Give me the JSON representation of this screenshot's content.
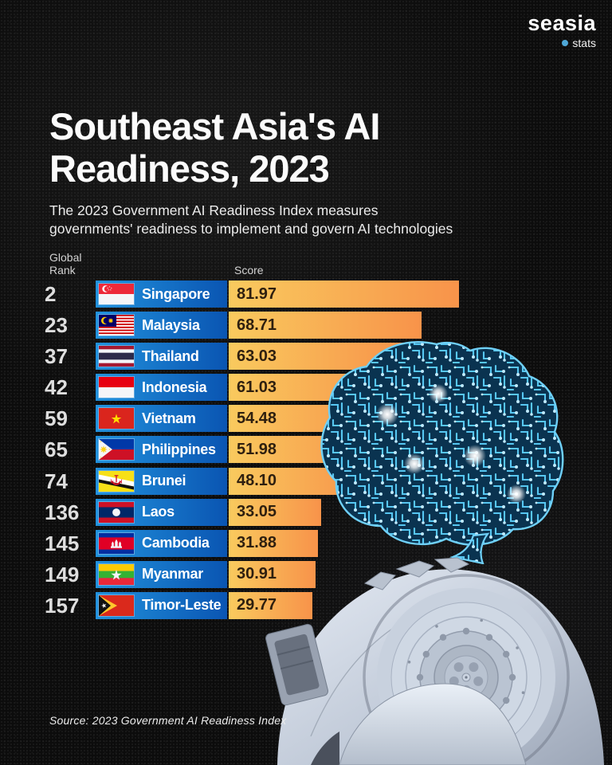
{
  "logo": {
    "brand": "seasia",
    "tagline": "stats",
    "dot_color": "#4FA8D8"
  },
  "header": {
    "title_lines": [
      "Southeast Asia's AI",
      "Readiness, 2023"
    ],
    "subtitle_lines": [
      "The 2023 Government AI Readiness Index measures",
      "governments' readiness to implement and govern AI technologies"
    ]
  },
  "columns": {
    "rank_lines": [
      "Global",
      "Rank"
    ],
    "score": "Score"
  },
  "chart_data": {
    "type": "bar",
    "orientation": "horizontal",
    "title": "Southeast Asia's AI Readiness, 2023",
    "value_label": "Score",
    "rank_label": "Global Rank",
    "value_range": [
      0,
      100
    ],
    "legend": "none",
    "grid": false,
    "rows": [
      {
        "rank": "2",
        "country": "Singapore",
        "score": 81.97,
        "score_label": "81.97",
        "flag": "singapore-flag"
      },
      {
        "rank": "23",
        "country": "Malaysia",
        "score": 68.71,
        "score_label": "68.71",
        "flag": "malaysia-flag"
      },
      {
        "rank": "37",
        "country": "Thailand",
        "score": 63.03,
        "score_label": "63.03",
        "flag": "thailand-flag"
      },
      {
        "rank": "42",
        "country": "Indonesia",
        "score": 61.03,
        "score_label": "61.03",
        "flag": "indonesia-flag"
      },
      {
        "rank": "59",
        "country": "Vietnam",
        "score": 54.48,
        "score_label": "54.48",
        "flag": "vietnam-flag"
      },
      {
        "rank": "65",
        "country": "Philippines",
        "score": 51.98,
        "score_label": "51.98",
        "flag": "philippines-flag"
      },
      {
        "rank": "74",
        "country": "Brunei",
        "score": 48.1,
        "score_label": "48.10",
        "flag": "brunei-flag"
      },
      {
        "rank": "136",
        "country": "Laos",
        "score": 33.05,
        "score_label": "33.05",
        "flag": "laos-flag"
      },
      {
        "rank": "145",
        "country": "Cambodia",
        "score": 31.88,
        "score_label": "31.88",
        "flag": "cambodia-flag"
      },
      {
        "rank": "149",
        "country": "Myanmar",
        "score": 30.91,
        "score_label": "30.91",
        "flag": "myanmar-flag"
      },
      {
        "rank": "157",
        "country": "Timor-Leste",
        "score": 29.77,
        "score_label": "29.77",
        "flag": "timor-leste-flag"
      }
    ]
  },
  "source": "Source: 2023 Government AI Readiness Index",
  "colors": {
    "background": "#0c0c0c",
    "bar_gradient_start": "#F9CA5E",
    "bar_gradient_end": "#F8934A",
    "label_gradient_start": "#2191DC",
    "label_gradient_end": "#0A55B2",
    "score_text": "#2e1f0f",
    "rank_text": "#dedede",
    "brain_blue": "#57C7F2"
  }
}
